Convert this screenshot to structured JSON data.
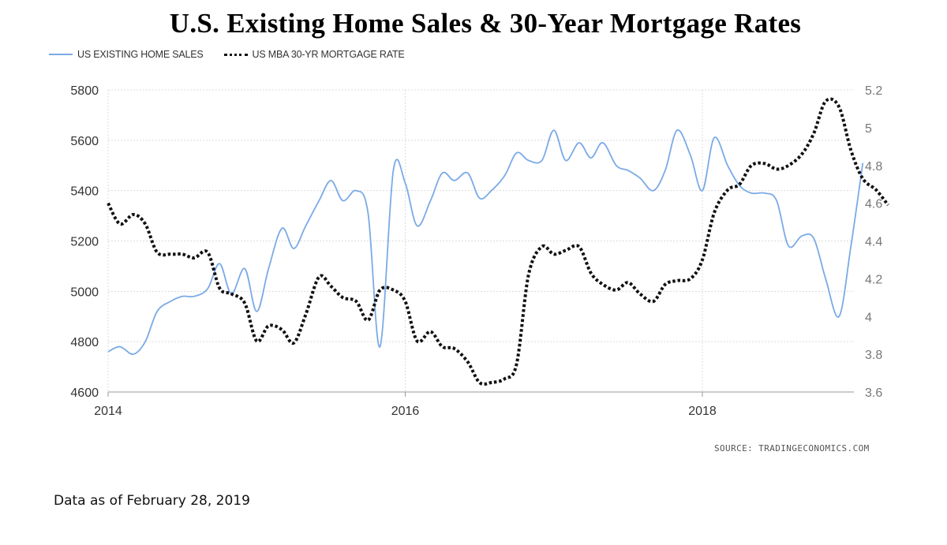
{
  "header": {
    "title": "U.S. Existing Home Sales & 30-Year Mortgage Rates"
  },
  "legend": {
    "items": [
      {
        "label": "US EXISTING HOME SALES",
        "style": "solid",
        "color": "#7aaae6"
      },
      {
        "label": "US MBA 30-YR MORTGAGE RATE",
        "style": "dotted",
        "color": "#111111"
      }
    ]
  },
  "source": "SOURCE:  TRADINGECONOMICS.COM",
  "footnote": "Data as of February 28, 2019",
  "chart_data": {
    "type": "line",
    "title": "U.S. Existing Home Sales & 30-Year Mortgage Rates",
    "xlabel": "",
    "ylabel": "",
    "x_ticks": [
      "2014",
      "2016",
      "2018"
    ],
    "x_range": [
      2014.0,
      2019.3
    ],
    "y_left": {
      "range": [
        4600,
        5800
      ],
      "ticks": [
        "4600",
        "4800",
        "5000",
        "5200",
        "5400",
        "5600",
        "5800"
      ]
    },
    "y_right": {
      "range": [
        3.6,
        5.2
      ],
      "ticks": [
        "3.6",
        "3.8",
        "4",
        "4.2",
        "4.4",
        "4.6",
        "4.8",
        "5",
        "5.2"
      ]
    },
    "grid": true,
    "legend_position": "top-left",
    "series": [
      {
        "name": "US EXISTING HOME SALES",
        "axis": "left",
        "color": "#7aaae6",
        "style": "solid",
        "x": [
          2014.0,
          2014.08,
          2014.17,
          2014.25,
          2014.33,
          2014.42,
          2014.5,
          2014.58,
          2014.67,
          2014.75,
          2014.83,
          2014.92,
          2015.0,
          2015.08,
          2015.17,
          2015.25,
          2015.33,
          2015.42,
          2015.5,
          2015.58,
          2015.67,
          2015.75,
          2015.83,
          2015.92,
          2016.0,
          2016.08,
          2016.17,
          2016.25,
          2016.33,
          2016.42,
          2016.5,
          2016.58,
          2016.67,
          2016.75,
          2016.83,
          2016.92,
          2017.0,
          2017.08,
          2017.17,
          2017.25,
          2017.33,
          2017.42,
          2017.5,
          2017.58,
          2017.67,
          2017.75,
          2017.83,
          2017.92,
          2018.0,
          2018.08,
          2018.17,
          2018.25,
          2018.33,
          2018.42,
          2018.5,
          2018.58,
          2018.67,
          2018.75,
          2018.83,
          2018.92,
          2019.0,
          2019.08
        ],
        "values": [
          4760,
          4780,
          4750,
          4800,
          4920,
          4960,
          4980,
          4980,
          5010,
          5110,
          4990,
          5090,
          4920,
          5090,
          5250,
          5170,
          5260,
          5360,
          5440,
          5360,
          5400,
          5310,
          4780,
          5480,
          5430,
          5260,
          5360,
          5470,
          5440,
          5470,
          5370,
          5400,
          5460,
          5550,
          5520,
          5520,
          5640,
          5520,
          5590,
          5530,
          5590,
          5500,
          5480,
          5450,
          5400,
          5480,
          5640,
          5540,
          5400,
          5610,
          5500,
          5420,
          5390,
          5390,
          5360,
          5180,
          5220,
          5210,
          5050,
          4900,
          5180,
          5510
        ]
      },
      {
        "name": "US MBA 30-YR MORTGAGE RATE",
        "axis": "right",
        "color": "#111111",
        "style": "dotted",
        "x": [
          2014.0,
          2014.08,
          2014.17,
          2014.25,
          2014.33,
          2014.42,
          2014.5,
          2014.58,
          2014.67,
          2014.75,
          2014.83,
          2014.92,
          2015.0,
          2015.08,
          2015.17,
          2015.25,
          2015.33,
          2015.42,
          2015.5,
          2015.58,
          2015.67,
          2015.75,
          2015.83,
          2015.92,
          2016.0,
          2016.08,
          2016.17,
          2016.25,
          2016.33,
          2016.42,
          2016.5,
          2016.58,
          2016.67,
          2016.75,
          2016.83,
          2016.92,
          2017.0,
          2017.08,
          2017.17,
          2017.25,
          2017.33,
          2017.42,
          2017.5,
          2017.58,
          2017.67,
          2017.75,
          2017.83,
          2017.92,
          2018.0,
          2018.08,
          2018.17,
          2018.25,
          2018.33,
          2018.42,
          2018.5,
          2018.58,
          2018.67,
          2018.75,
          2018.83,
          2018.92,
          2019.0,
          2019.08,
          2019.17,
          2019.25
        ],
        "values": [
          4.6,
          4.49,
          4.54,
          4.49,
          4.34,
          4.33,
          4.33,
          4.31,
          4.34,
          4.15,
          4.12,
          4.07,
          3.87,
          3.95,
          3.93,
          3.86,
          4.01,
          4.21,
          4.16,
          4.1,
          4.08,
          3.98,
          4.14,
          4.14,
          4.08,
          3.87,
          3.92,
          3.84,
          3.83,
          3.76,
          3.65,
          3.65,
          3.67,
          3.75,
          4.22,
          4.37,
          4.33,
          4.35,
          4.37,
          4.23,
          4.17,
          4.14,
          4.18,
          4.12,
          4.08,
          4.17,
          4.19,
          4.2,
          4.3,
          4.55,
          4.67,
          4.7,
          4.8,
          4.81,
          4.78,
          4.8,
          4.86,
          4.97,
          5.14,
          5.11,
          4.88,
          4.73,
          4.67,
          4.59
        ]
      }
    ]
  }
}
